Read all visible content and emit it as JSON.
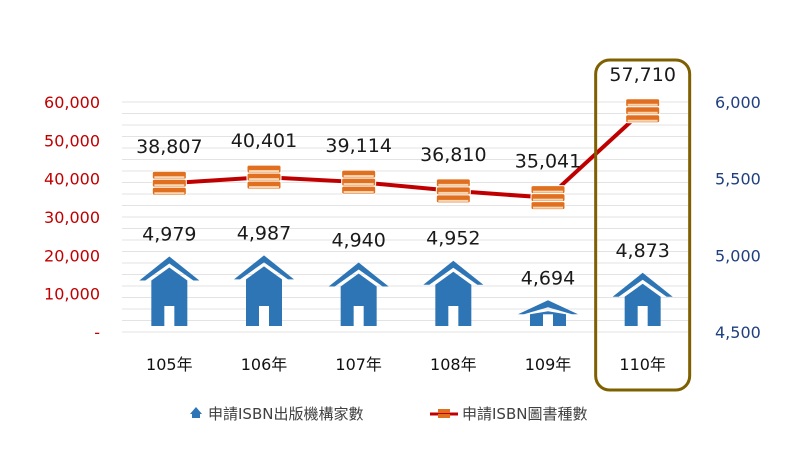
{
  "chart_data": {
    "type": "bar-line",
    "categories": [
      "105年",
      "106年",
      "107年",
      "108年",
      "109年",
      "110年"
    ],
    "series": [
      {
        "name": "申請ISBN出版機構家數",
        "axis": "right",
        "marker": "house-icon",
        "color": "#2e75b6",
        "values": [
          4979,
          4987,
          4940,
          4952,
          4694,
          4873
        ],
        "labels": [
          "4,979",
          "4,987",
          "4,940",
          "4,952",
          "4,694",
          "4,873"
        ]
      },
      {
        "name": "申請ISBN圖書種數",
        "axis": "left",
        "marker": "book-stack-icon",
        "color": "#c00000",
        "values": [
          38807,
          40401,
          39114,
          36810,
          35041,
          57710
        ],
        "labels": [
          "38,807",
          "40,401",
          "39,114",
          "36,810",
          "35,041",
          "57,710"
        ]
      }
    ],
    "left_axis": {
      "range": [
        0,
        60000
      ],
      "ticks": [
        0,
        10000,
        20000,
        30000,
        40000,
        50000,
        60000
      ],
      "tick_labels": [
        "-",
        "10,000",
        "20,000",
        "30,000",
        "40,000",
        "50,000",
        "60,000"
      ],
      "color": "#c00000"
    },
    "right_axis": {
      "range": [
        4500,
        6000
      ],
      "ticks": [
        4500,
        5000,
        5500,
        6000
      ],
      "tick_labels": [
        "4,500",
        "5,000",
        "5,500",
        "6,000"
      ],
      "color": "#1f3f7f"
    },
    "grid": true,
    "legend": "bottom",
    "highlight": {
      "category": "110年",
      "color": "#7f6000"
    }
  }
}
